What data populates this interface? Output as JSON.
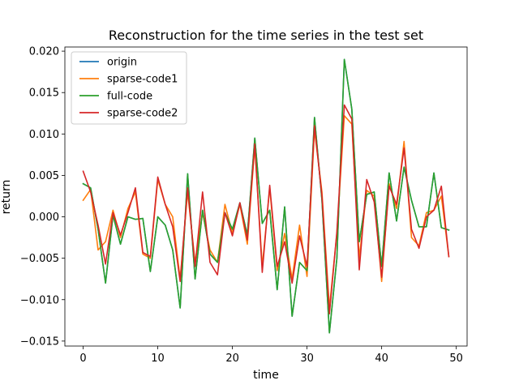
{
  "chart_data": {
    "type": "line",
    "title": "Reconstruction for the time series in the test set",
    "xlabel": "time",
    "ylabel": "return",
    "xlim": [
      -2.45,
      51.45
    ],
    "ylim": [
      -0.0156,
      0.0205
    ],
    "xticks": [
      0,
      10,
      20,
      30,
      40,
      50
    ],
    "xtick_labels": [
      "0",
      "10",
      "20",
      "30",
      "40",
      "50"
    ],
    "yticks": [
      -0.015,
      -0.01,
      -0.005,
      0.0,
      0.005,
      0.01,
      0.015,
      0.02
    ],
    "ytick_labels": [
      "−0.015",
      "−0.010",
      "−0.005",
      "0.000",
      "0.005",
      "0.010",
      "0.015",
      "0.020"
    ],
    "grid": false,
    "legend_position": "upper-left",
    "x": [
      0,
      1,
      2,
      3,
      4,
      5,
      6,
      7,
      8,
      9,
      10,
      11,
      12,
      13,
      14,
      15,
      16,
      17,
      18,
      19,
      20,
      21,
      22,
      23,
      24,
      25,
      26,
      27,
      28,
      29,
      30,
      31,
      32,
      33,
      34,
      35,
      36,
      37,
      38,
      39,
      40,
      41,
      42,
      43,
      44,
      45,
      46,
      47,
      48,
      49
    ],
    "series": [
      {
        "name": "origin",
        "color": "#1f77b4",
        "values": [
          0.004,
          0.0035,
          -0.0015,
          -0.008,
          0.0002,
          -0.0033,
          0.0,
          -0.0003,
          -0.0002,
          -0.0066,
          0.0,
          -0.001,
          -0.004,
          -0.011,
          0.0052,
          -0.0075,
          0.0008,
          -0.0045,
          -0.0055,
          0.0005,
          -0.0015,
          0.0017,
          -0.0022,
          0.0095,
          -0.0008,
          0.0008,
          -0.0088,
          0.0012,
          -0.012,
          -0.0055,
          -0.0065,
          0.012,
          0.002,
          -0.014,
          -0.005,
          0.019,
          0.013,
          -0.003,
          0.0027,
          0.003,
          -0.006,
          0.0053,
          -0.0005,
          0.006,
          0.002,
          -0.0012,
          -0.0012,
          0.0053,
          -0.0013,
          -0.0016
        ]
      },
      {
        "name": "sparse-code1",
        "color": "#ff7f0e",
        "values": [
          0.002,
          0.0033,
          -0.004,
          -0.003,
          0.0008,
          -0.0025,
          0.001,
          0.003,
          -0.0045,
          -0.005,
          0.0045,
          0.0015,
          0.0,
          -0.0075,
          0.003,
          -0.0055,
          0.0005,
          -0.004,
          -0.0055,
          0.0015,
          -0.002,
          0.0015,
          -0.0033,
          0.0085,
          -0.006,
          0.0035,
          -0.0065,
          -0.002,
          -0.0075,
          -0.001,
          -0.0072,
          0.0105,
          0.003,
          -0.011,
          -0.002,
          0.0122,
          0.0112,
          -0.005,
          0.0032,
          0.0025,
          -0.0078,
          0.004,
          0.001,
          0.0091,
          -0.0025,
          -0.0035,
          0.0005,
          0.0008,
          0.0025,
          -0.0048
        ]
      },
      {
        "name": "full-code",
        "color": "#2ca02c",
        "values": [
          0.004,
          0.0035,
          -0.0015,
          -0.008,
          0.0002,
          -0.0033,
          0.0,
          -0.0003,
          -0.0002,
          -0.0066,
          0.0,
          -0.001,
          -0.004,
          -0.011,
          0.0052,
          -0.0075,
          0.0008,
          -0.0045,
          -0.0055,
          0.0005,
          -0.0015,
          0.0017,
          -0.0022,
          0.0095,
          -0.0008,
          0.0008,
          -0.0088,
          0.0012,
          -0.012,
          -0.0055,
          -0.0065,
          0.012,
          0.002,
          -0.014,
          -0.005,
          0.019,
          0.013,
          -0.003,
          0.0027,
          0.003,
          -0.006,
          0.0053,
          -0.0005,
          0.006,
          0.002,
          -0.0012,
          -0.0012,
          0.0053,
          -0.0013,
          -0.0016
        ]
      },
      {
        "name": "sparse-code2",
        "color": "#d62728",
        "values": [
          0.0055,
          0.003,
          -0.001,
          -0.0057,
          0.0005,
          -0.0022,
          0.0005,
          0.0035,
          -0.0043,
          -0.0048,
          0.0048,
          0.0015,
          -0.0012,
          -0.0078,
          0.0035,
          -0.006,
          0.003,
          -0.0055,
          -0.007,
          0.0005,
          -0.0023,
          0.0017,
          -0.0028,
          0.0088,
          -0.0067,
          0.0038,
          -0.006,
          -0.003,
          -0.008,
          -0.0023,
          -0.006,
          0.011,
          0.0025,
          -0.0117,
          -0.0018,
          0.0135,
          0.0118,
          -0.0064,
          0.0045,
          0.0018,
          -0.0073,
          0.0037,
          0.0015,
          0.0083,
          -0.0015,
          -0.0038,
          0.0,
          0.0008,
          0.0037,
          -0.0048
        ]
      }
    ]
  }
}
